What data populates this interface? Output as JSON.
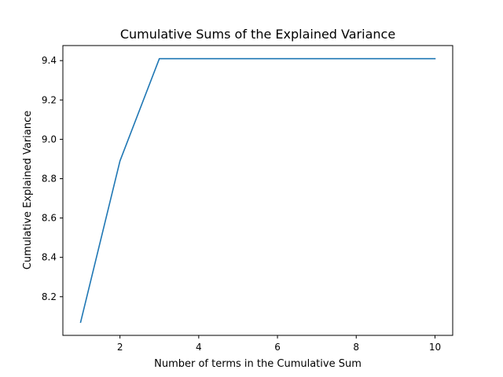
{
  "chart_data": {
    "type": "line",
    "title": "Cumulative Sums of the Explained Variance",
    "xlabel": "Number of terms in the Cumulative Sum",
    "ylabel": "Cumulative Explained Variance",
    "xlim": [
      0.55,
      10.45
    ],
    "ylim": [
      8.0035,
      9.4765
    ],
    "xticks": [
      2,
      4,
      6,
      8,
      10
    ],
    "xtick_labels": [
      "2",
      "4",
      "6",
      "8",
      "10"
    ],
    "yticks": [
      8.2,
      8.4,
      8.6,
      8.8,
      9.0,
      9.2,
      9.4
    ],
    "ytick_labels": [
      "8.2",
      "8.4",
      "8.6",
      "8.8",
      "9.0",
      "9.2",
      "9.4"
    ],
    "grid": false,
    "series": [
      {
        "color": "#1f77b4",
        "x": [
          1,
          2,
          3,
          4,
          5,
          6,
          7,
          8,
          9,
          10
        ],
        "y": [
          8.07,
          8.89,
          9.41,
          9.41,
          9.41,
          9.41,
          9.41,
          9.41,
          9.41,
          9.41
        ]
      }
    ]
  }
}
